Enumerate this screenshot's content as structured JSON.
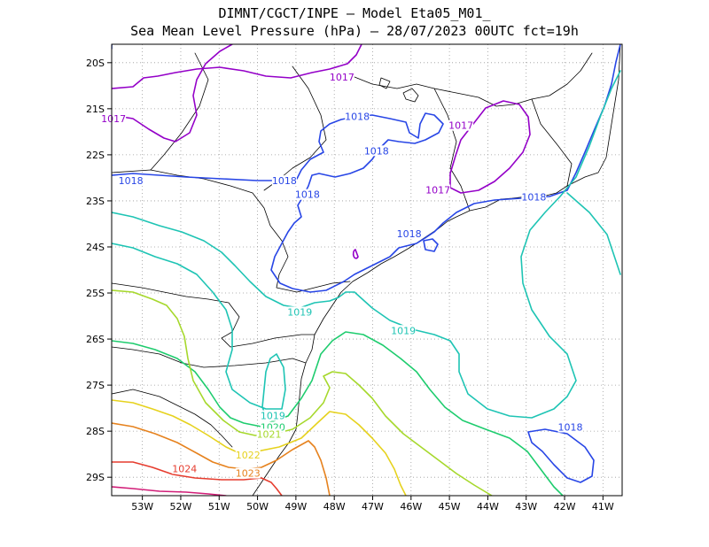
{
  "title": {
    "line1": "DIMNT/CGCT/INPE –  Model Eta05_M01_",
    "line2": "Sea Mean Level Pressure (hPa) – 28/07/2023 00UTC fct=19h"
  },
  "map": {
    "lon_range": [
      -53.8,
      -40.5
    ],
    "lat_range": [
      -29.4,
      -19.6
    ],
    "lon_ticks": [
      {
        "lon": -53,
        "label": "53W"
      },
      {
        "lon": -52,
        "label": "52W"
      },
      {
        "lon": -51,
        "label": "51W"
      },
      {
        "lon": -50,
        "label": "50W"
      },
      {
        "lon": -49,
        "label": "49W"
      },
      {
        "lon": -48,
        "label": "48W"
      },
      {
        "lon": -47,
        "label": "47W"
      },
      {
        "lon": -46,
        "label": "46W"
      },
      {
        "lon": -45,
        "label": "45W"
      },
      {
        "lon": -44,
        "label": "44W"
      },
      {
        "lon": -43,
        "label": "43W"
      },
      {
        "lon": -42,
        "label": "42W"
      },
      {
        "lon": -41,
        "label": "41W"
      }
    ],
    "lat_ticks": [
      {
        "lat": -20,
        "label": "20S"
      },
      {
        "lat": -21,
        "label": "21S"
      },
      {
        "lat": -22,
        "label": "22S"
      },
      {
        "lat": -23,
        "label": "23S"
      },
      {
        "lat": -24,
        "label": "24S"
      },
      {
        "lat": -25,
        "label": "25S"
      },
      {
        "lat": -26,
        "label": "26S"
      },
      {
        "lat": -27,
        "label": "27S"
      },
      {
        "lat": -28,
        "label": "28S"
      },
      {
        "lat": -29,
        "label": "29S"
      }
    ],
    "grid": "dotted",
    "colors": {
      "1017": "#9400c8",
      "1018": "#2846e6",
      "1019": "#1ec4b4",
      "1020": "#1ecc6e",
      "1021": "#a6d82c",
      "1022": "#e6d21e",
      "1023": "#e6821e",
      "1024": "#e63c2e",
      "1025": "#d21e78",
      "coast": "#000000"
    },
    "contour_labels": [
      {
        "text": "1017",
        "level": "1017",
        "lon": -47.8,
        "lat": -20.35
      },
      {
        "text": "1017",
        "level": "1017",
        "lon": -53.75,
        "lat": -21.25
      },
      {
        "text": "1017",
        "level": "1017",
        "lon": -44.7,
        "lat": -21.4
      },
      {
        "text": "1017",
        "level": "1017",
        "lon": -45.3,
        "lat": -22.8
      },
      {
        "text": "1018",
        "level": "1018",
        "lon": -47.4,
        "lat": -21.2
      },
      {
        "text": "1018",
        "level": "1018",
        "lon": -46.9,
        "lat": -21.95
      },
      {
        "text": "1018",
        "level": "1018",
        "lon": -53.3,
        "lat": -22.6
      },
      {
        "text": "1018",
        "level": "1018",
        "lon": -49.3,
        "lat": -22.6
      },
      {
        "text": "1018",
        "level": "1018",
        "lon": -48.7,
        "lat": -22.9
      },
      {
        "text": "1018",
        "level": "1018",
        "lon": -42.8,
        "lat": -22.95
      },
      {
        "text": "1018",
        "level": "1018",
        "lon": -46.05,
        "lat": -23.75
      },
      {
        "text": "1018",
        "level": "1018",
        "lon": -41.85,
        "lat": -27.95
      },
      {
        "text": "1019",
        "level": "1019",
        "lon": -48.9,
        "lat": -25.45
      },
      {
        "text": "1019",
        "level": "1019",
        "lon": -46.2,
        "lat": -25.85
      },
      {
        "text": "1019",
        "level": "1019",
        "lon": -49.6,
        "lat": -27.7
      },
      {
        "text": "1020",
        "level": "1020",
        "lon": -49.6,
        "lat": -27.95
      },
      {
        "text": "1021",
        "level": "1021",
        "lon": -49.7,
        "lat": -28.1
      },
      {
        "text": "1022",
        "level": "1022",
        "lon": -50.25,
        "lat": -28.55
      },
      {
        "text": "1023",
        "level": "1023",
        "lon": -50.25,
        "lat": -28.95
      },
      {
        "text": "1024",
        "level": "1024",
        "lon": -51.9,
        "lat": -28.85
      }
    ]
  }
}
